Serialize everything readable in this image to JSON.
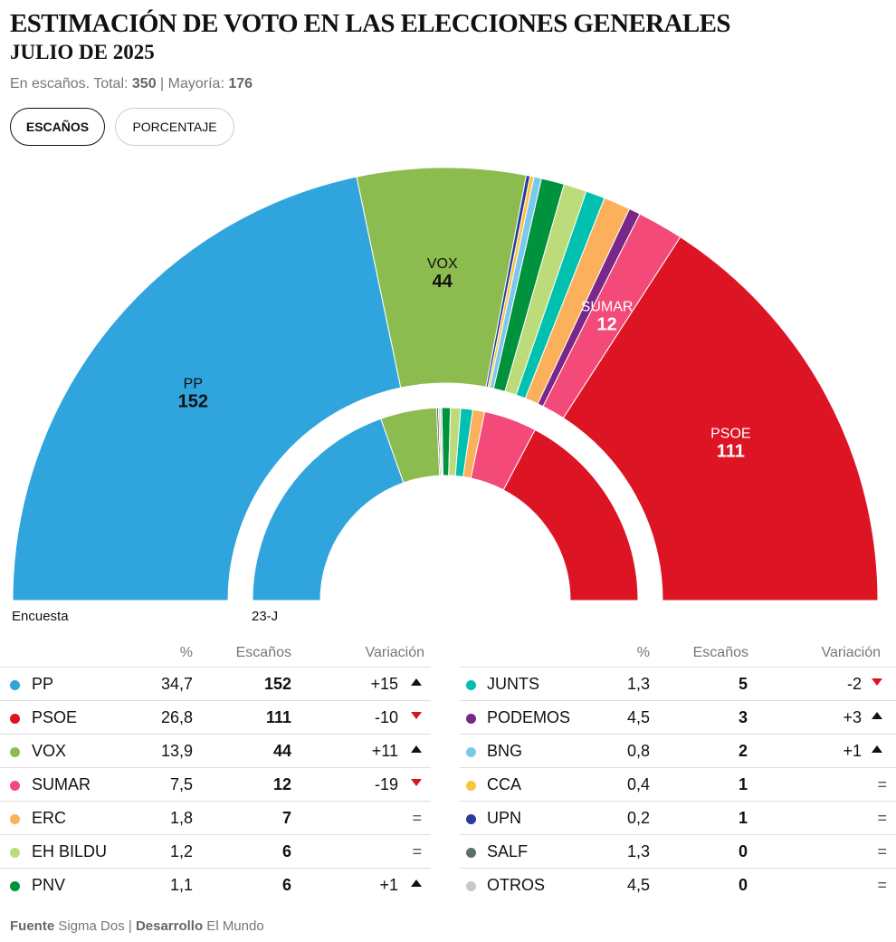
{
  "header": {
    "title": "ESTIMACIÓN DE VOTO EN LAS ELECCIONES GENERALES",
    "subtitle": "JULIO DE 2025",
    "meta_prefix": "En escaños. Total: ",
    "total": "350",
    "meta_mid": " | Mayoría: ",
    "majority": "176"
  },
  "toggle": {
    "seats_label": "ESCAÑOS",
    "percent_label": "PORCENTAJE",
    "selected": "ESCAÑOS"
  },
  "chart_labels": {
    "outer": "Encuesta",
    "inner": "23-J"
  },
  "table_headers": {
    "pct": "%",
    "seats": "Escaños",
    "variation": "Variación"
  },
  "footer": {
    "source_label": "Fuente",
    "source": " Sigma Dos | ",
    "dev_label": "Desarrollo",
    "dev": " El Mundo"
  },
  "chart_data": {
    "type": "parliament-hemicycle",
    "title": "ESTIMACIÓN DE VOTO EN LAS ELECCIONES GENERALES",
    "subtitle": "JULIO DE 2025",
    "total_seats": 350,
    "majority": 176,
    "series": [
      {
        "name": "Encuesta",
        "ring": "outer"
      },
      {
        "name": "23-J",
        "ring": "inner"
      }
    ],
    "outer_order": [
      "PP",
      "VOX",
      "SALF",
      "UPN",
      "CCA",
      "BNG",
      "PNV",
      "EH BILDU",
      "JUNTS",
      "ERC",
      "PODEMOS",
      "SUMAR",
      "PSOE"
    ],
    "inner_order": [
      "PP",
      "VOX",
      "UPN",
      "CCA",
      "BNG",
      "PNV",
      "EH BILDU",
      "JUNTS",
      "ERC",
      "SUMAR",
      "PSOE"
    ],
    "labeled_segments": [
      "PP",
      "VOX",
      "SUMAR",
      "PSOE"
    ],
    "parties": [
      {
        "name": "PP",
        "color": "#30a4dc",
        "pct": "34,7",
        "seats": 152,
        "seats_23j": 137,
        "variation": "+15",
        "trend": "up"
      },
      {
        "name": "PSOE",
        "color": "#dc1424",
        "pct": "26,8",
        "seats": 111,
        "seats_23j": 121,
        "variation": "-10",
        "trend": "down"
      },
      {
        "name": "VOX",
        "color": "#8cbc50",
        "pct": "13,9",
        "seats": 44,
        "seats_23j": 33,
        "variation": "+11",
        "trend": "up"
      },
      {
        "name": "SUMAR",
        "color": "#f44a7a",
        "pct": "7,5",
        "seats": 12,
        "seats_23j": 31,
        "variation": "-19",
        "trend": "down"
      },
      {
        "name": "ERC",
        "color": "#fcb05c",
        "pct": "1,8",
        "seats": 7,
        "seats_23j": 7,
        "variation": "=",
        "trend": "same"
      },
      {
        "name": "EH BILDU",
        "color": "#bcdc7c",
        "pct": "1,2",
        "seats": 6,
        "seats_23j": 6,
        "variation": "=",
        "trend": "same"
      },
      {
        "name": "PNV",
        "color": "#00923c",
        "pct": "1,1",
        "seats": 6,
        "seats_23j": 5,
        "variation": "+1",
        "trend": "up"
      },
      {
        "name": "JUNTS",
        "color": "#00c0b0",
        "pct": "1,3",
        "seats": 5,
        "seats_23j": 7,
        "variation": "-2",
        "trend": "down"
      },
      {
        "name": "PODEMOS",
        "color": "#782888",
        "pct": "4,5",
        "seats": 3,
        "seats_23j": 0,
        "variation": "+3",
        "trend": "up"
      },
      {
        "name": "BNG",
        "color": "#7cc8ec",
        "pct": "0,8",
        "seats": 2,
        "seats_23j": 1,
        "variation": "+1",
        "trend": "up"
      },
      {
        "name": "CCA",
        "color": "#fcc43c",
        "pct": "0,4",
        "seats": 1,
        "seats_23j": 1,
        "variation": "=",
        "trend": "same"
      },
      {
        "name": "UPN",
        "color": "#283c9c",
        "pct": "0,2",
        "seats": 1,
        "seats_23j": 1,
        "variation": "=",
        "trend": "same"
      },
      {
        "name": "SALF",
        "color": "#5a6e6a",
        "pct": "1,3",
        "seats": 0,
        "seats_23j": 0,
        "variation": "=",
        "trend": "same"
      },
      {
        "name": "OTROS",
        "color": "#c8c8c8",
        "pct": "4,5",
        "seats": 0,
        "seats_23j": 0,
        "variation": "=",
        "trend": "same"
      }
    ]
  }
}
